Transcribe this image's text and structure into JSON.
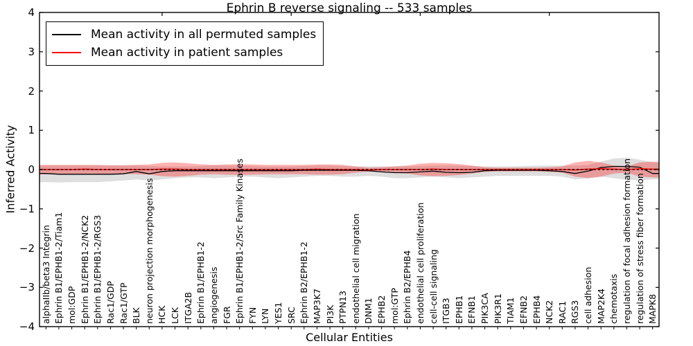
{
  "chart_data": {
    "type": "line",
    "title": "Ephrin B reverse signaling -- 533 samples",
    "xlabel": "Cellular Entities",
    "ylabel": "Inferred Activity",
    "legend_position": "upper left",
    "grid": false,
    "ylim": [
      -4,
      4
    ],
    "yticks": {
      "values": [
        4,
        3,
        2,
        1,
        0,
        -1,
        -2,
        -3,
        -4
      ],
      "labels": [
        "4",
        "3",
        "2",
        "1",
        "0",
        "−1",
        "−2",
        "−3",
        "−4"
      ]
    },
    "categories": [
      "alphaIIb/beta3 Integrin",
      "Ephrin B1/EPHB1-2/Tiam1",
      "mol:GDP",
      "Ephrin B1/EPHB1-2/NCK2",
      "Ephrin B1/EPHB1-2/RGS3",
      "Rac1/GDP",
      "Rac1/GTP",
      "BLK",
      "neuron projection morphogenesis",
      "HCK",
      "LCK",
      "ITGA2B",
      "Ephrin B1/EPHB1-2",
      "angiogenesis",
      "FGR",
      "Ephrin B1/EPHB1-2/Src Family Kinases",
      "FYN",
      "LYN",
      "YES1",
      "SRC",
      "Ephrin B2/EPHB1-2",
      "MAP3K7",
      "PI3K",
      "PTPN13",
      "endothelial cell migration",
      "DNM1",
      "EPHB2",
      "mol:GTP",
      "Ephrin B2/EPHB4",
      "endothelial cell proliferation",
      "cell-cell signaling",
      "ITGB3",
      "EPHB1",
      "EFNB1",
      "PIK3CA",
      "PIK3R1",
      "TIAM1",
      "EFNB2",
      "EPHB4",
      "NCK2",
      "RAC1",
      "RGS3",
      "cell adhesion",
      "MAP2K4",
      "chemotaxis",
      "regulation of focal adhesion formation",
      "regulation of stress fiber formation",
      "MAPK8"
    ],
    "series": [
      {
        "name": "Mean activity in all permuted samples",
        "color": "#000000",
        "values": [
          -0.1,
          -0.12,
          -0.12,
          -0.12,
          -0.12,
          -0.12,
          -0.11,
          -0.05,
          -0.11,
          -0.05,
          -0.03,
          -0.03,
          -0.03,
          -0.03,
          -0.03,
          -0.03,
          -0.03,
          -0.03,
          -0.03,
          -0.03,
          -0.02,
          -0.02,
          -0.02,
          -0.02,
          -0.02,
          -0.03,
          -0.06,
          -0.08,
          -0.08,
          -0.06,
          -0.04,
          -0.07,
          -0.08,
          -0.07,
          -0.03,
          -0.02,
          -0.02,
          -0.02,
          -0.02,
          -0.03,
          -0.05,
          -0.1,
          -0.04,
          0.05,
          0.08,
          0.08,
          0.06,
          -0.1
        ]
      },
      {
        "name": "Mean activity in patient samples",
        "color": "#ff0000",
        "values": [
          0,
          0,
          0,
          0.01,
          0,
          0,
          0,
          0,
          0,
          0.01,
          0.01,
          0,
          0,
          0,
          0,
          0,
          0,
          0,
          0,
          0,
          0,
          0.01,
          0,
          0,
          0,
          -0.01,
          0,
          0,
          0,
          0,
          0.01,
          0,
          0,
          0,
          0,
          0,
          0,
          0,
          0,
          0,
          0,
          -0.01,
          0.01,
          0.02,
          0.01,
          0,
          0.02,
          0.01
        ]
      }
    ],
    "bands": [
      {
        "name": "permuted samples range",
        "color": "rgba(0,0,0,0.13)",
        "upper": [
          0.1,
          0.1,
          0.1,
          0.1,
          0.1,
          0.1,
          0.1,
          0.1,
          0.09,
          0.08,
          0.08,
          0.08,
          0.09,
          0.1,
          0.1,
          0.1,
          0.09,
          0.08,
          0.08,
          0.08,
          0.09,
          0.1,
          0.1,
          0.09,
          0.08,
          0.08,
          0.08,
          0.08,
          0.08,
          0.09,
          0.1,
          0.1,
          0.1,
          0.09,
          0.08,
          0.08,
          0.08,
          0.09,
          0.1,
          0.1,
          0.1,
          0.1,
          0.12,
          0.2,
          0.28,
          0.3,
          0.25,
          0.18
        ],
        "lower": [
          -0.32,
          -0.33,
          -0.32,
          -0.32,
          -0.32,
          -0.3,
          -0.28,
          -0.25,
          -0.28,
          -0.25,
          -0.22,
          -0.2,
          -0.2,
          -0.22,
          -0.2,
          -0.18,
          -0.18,
          -0.2,
          -0.22,
          -0.2,
          -0.18,
          -0.16,
          -0.16,
          -0.18,
          -0.18,
          -0.16,
          -0.18,
          -0.22,
          -0.22,
          -0.2,
          -0.18,
          -0.2,
          -0.22,
          -0.2,
          -0.18,
          -0.16,
          -0.16,
          -0.16,
          -0.16,
          -0.16,
          -0.18,
          -0.25,
          -0.22,
          -0.18,
          -0.22,
          -0.26,
          -0.28,
          -0.25
        ]
      },
      {
        "name": "patient samples range",
        "color": "rgba(255,0,0,0.30)",
        "upper": [
          0.12,
          0.12,
          0.12,
          0.12,
          0.12,
          0.11,
          0.11,
          0.12,
          0.13,
          0.17,
          0.18,
          0.16,
          0.13,
          0.12,
          0.13,
          0.14,
          0.13,
          0.12,
          0.12,
          0.12,
          0.12,
          0.13,
          0.13,
          0.12,
          0.08,
          0.05,
          0.06,
          0.08,
          0.1,
          0.15,
          0.17,
          0.16,
          0.14,
          0.1,
          0.06,
          0.05,
          0.05,
          0.05,
          0.05,
          0.06,
          0.08,
          0.18,
          0.22,
          0.18,
          0.1,
          0.08,
          0.18,
          0.2
        ],
        "lower": [
          -0.12,
          -0.12,
          -0.12,
          -0.12,
          -0.12,
          -0.11,
          -0.11,
          -0.12,
          -0.13,
          -0.17,
          -0.18,
          -0.16,
          -0.13,
          -0.12,
          -0.13,
          -0.14,
          -0.13,
          -0.12,
          -0.12,
          -0.12,
          -0.12,
          -0.13,
          -0.13,
          -0.12,
          -0.08,
          -0.05,
          -0.06,
          -0.08,
          -0.1,
          -0.15,
          -0.17,
          -0.16,
          -0.14,
          -0.1,
          -0.06,
          -0.05,
          -0.05,
          -0.05,
          -0.05,
          -0.06,
          -0.08,
          -0.18,
          -0.22,
          -0.18,
          -0.1,
          -0.08,
          -0.18,
          -0.2
        ]
      }
    ],
    "zero_line": {
      "value": 0,
      "color": "#000000",
      "style": "dashed"
    }
  }
}
